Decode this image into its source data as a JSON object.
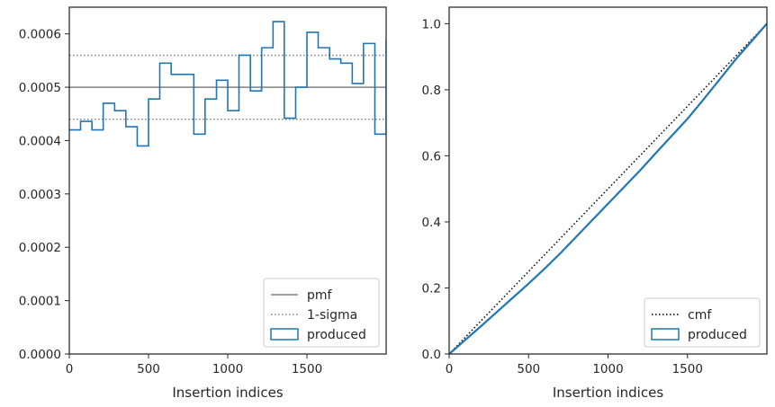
{
  "chart_data": [
    {
      "type": "step",
      "xlabel": "Insertion indices",
      "ylabel": "",
      "xlim": [
        0,
        2000
      ],
      "ylim": [
        0,
        0.00065
      ],
      "x_ticks": [
        0,
        500,
        1000,
        1500
      ],
      "x_tick_labels": [
        "0",
        "500",
        "1000",
        "1500"
      ],
      "y_ticks": [
        0,
        0.0001,
        0.0002,
        0.0003,
        0.0004,
        0.0005,
        0.0006
      ],
      "y_tick_labels": [
        "0.0000",
        "0.0001",
        "0.0002",
        "0.0003",
        "0.0004",
        "0.0005",
        "0.0006"
      ],
      "pmf": 0.0005,
      "sigma_band": [
        0.00044,
        0.00056
      ],
      "bin_edges": [
        0,
        71,
        143,
        214,
        286,
        357,
        429,
        500,
        571,
        643,
        714,
        786,
        857,
        929,
        1000,
        1071,
        1143,
        1214,
        1286,
        1357,
        1429,
        1500,
        1571,
        1643,
        1714,
        1786,
        1857,
        1929,
        2000
      ],
      "produced": [
        0.00042,
        0.000436,
        0.00042,
        0.00047,
        0.000456,
        0.000426,
        0.00039,
        0.000478,
        0.000545,
        0.000524,
        0.000524,
        0.000412,
        0.000478,
        0.000513,
        0.000456,
        0.00056,
        0.000493,
        0.000574,
        0.000623,
        0.000442,
        0.0005,
        0.000603,
        0.000574,
        0.000553,
        0.000545,
        0.000507,
        0.000582,
        0.000412
      ],
      "produced_last_edge_value": 0.000588,
      "legend": {
        "placement": "lower right",
        "entries": [
          {
            "label": "pmf",
            "style": "solid",
            "color": "#808080"
          },
          {
            "label": "1-sigma",
            "style": "dotted",
            "color": "#808080"
          },
          {
            "label": "produced",
            "style": "step-patch",
            "color": "#1f77b4"
          }
        ]
      }
    },
    {
      "type": "line",
      "xlabel": "Insertion indices",
      "ylabel": "",
      "xlim": [
        0,
        2000
      ],
      "ylim": [
        0,
        1.05
      ],
      "x_ticks": [
        0,
        500,
        1000,
        1500
      ],
      "x_tick_labels": [
        "0",
        "500",
        "1000",
        "1500"
      ],
      "y_ticks": [
        0,
        0.2,
        0.4,
        0.6,
        0.8,
        1.0
      ],
      "y_tick_labels": [
        "0.0",
        "0.2",
        "0.4",
        "0.6",
        "0.8",
        "1.0"
      ],
      "cmf": {
        "x": [
          0,
          2000
        ],
        "y": [
          0,
          1.0
        ]
      },
      "produced": {
        "x": [
          0,
          100,
          200,
          300,
          400,
          500,
          600,
          700,
          800,
          900,
          1000,
          1100,
          1200,
          1300,
          1400,
          1500,
          1600,
          1700,
          1800,
          1900,
          2000
        ],
        "y": [
          0,
          0.042,
          0.084,
          0.127,
          0.17,
          0.213,
          0.258,
          0.305,
          0.355,
          0.405,
          0.455,
          0.505,
          0.555,
          0.608,
          0.66,
          0.712,
          0.77,
          0.83,
          0.89,
          0.945,
          1.0
        ]
      },
      "legend": {
        "placement": "lower right",
        "entries": [
          {
            "label": "cmf",
            "style": "dotted",
            "color": "#000000"
          },
          {
            "label": "produced",
            "style": "step-patch",
            "color": "#1f77b4"
          }
        ]
      }
    }
  ],
  "colors": {
    "produced": "#1f77b4",
    "pmf": "#808080",
    "cmf": "#000000",
    "axis": "#262626"
  }
}
